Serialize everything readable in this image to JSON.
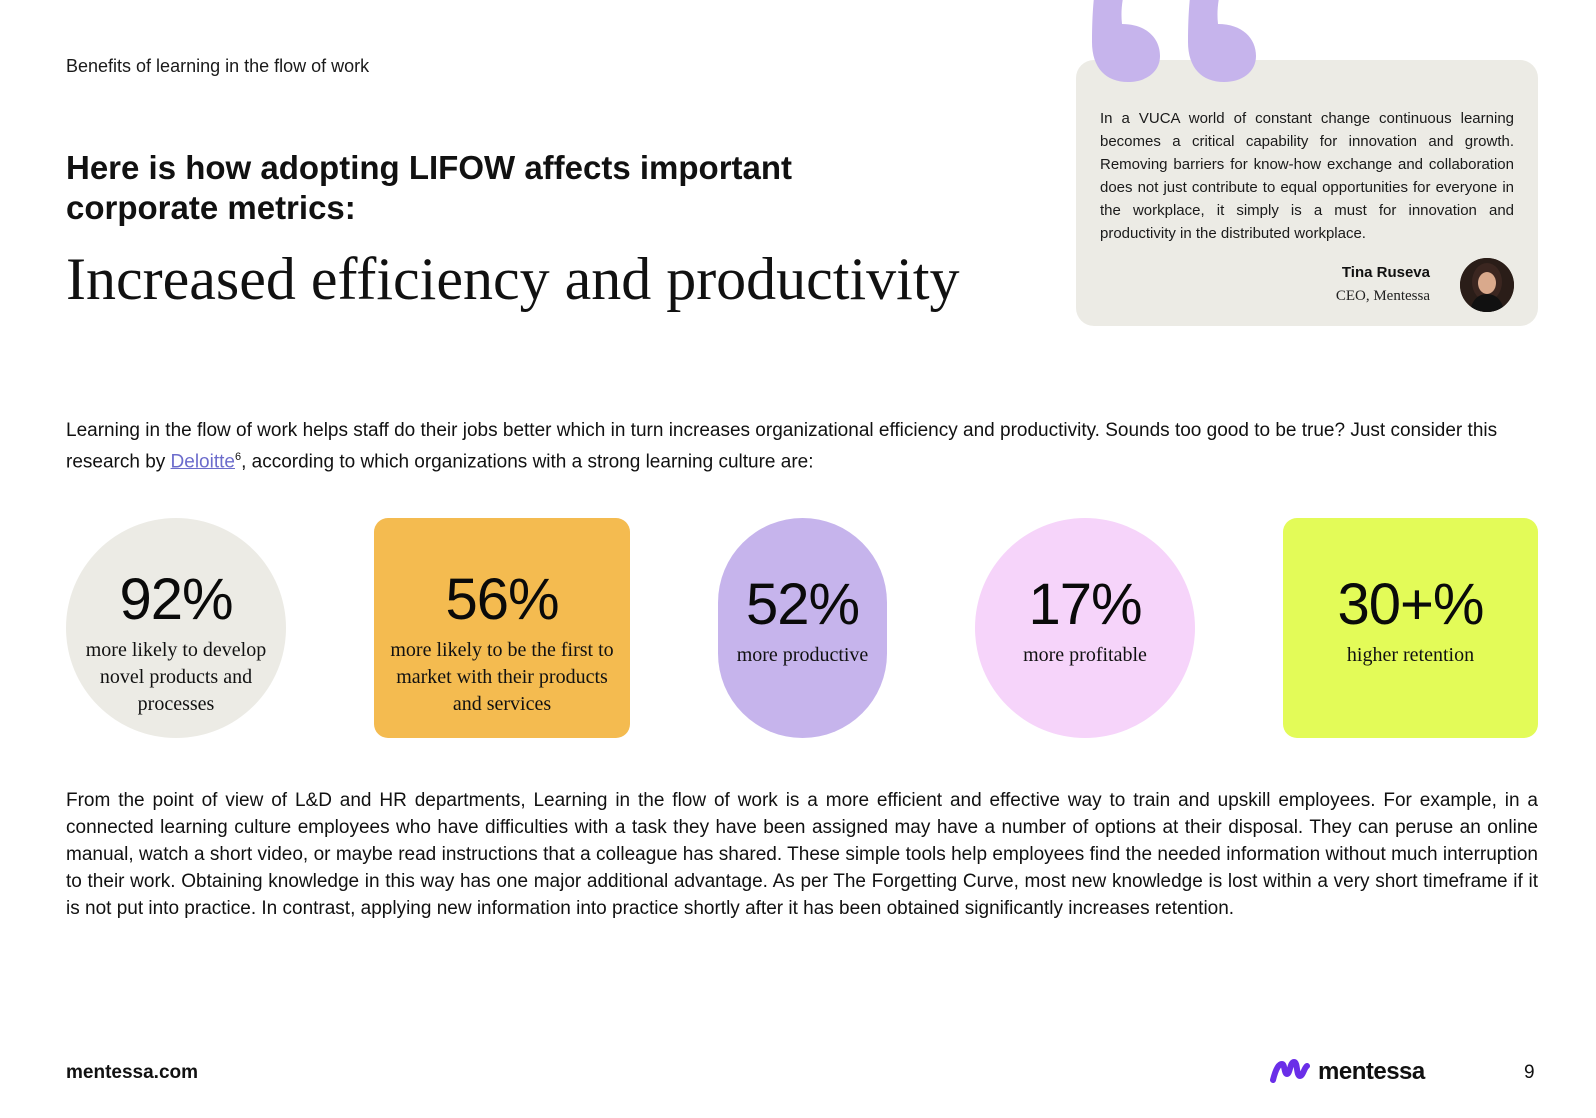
{
  "header": {
    "section_label": "Benefits of learning in the flow of work",
    "headline": "Here is how adopting LIFOW affects important corporate metrics:",
    "title": "Increased efficiency and productivity"
  },
  "quote": {
    "text": "In a VUCA world of constant change continuous learning becomes a critical capability for innovation and growth. Removing barriers for know-how exchange and collaboration does not just contribute to equal opportunities for everyone in the workplace, it simply is a must for innovation and productivity in the distributed workplace.",
    "author_name": "Tina Ruseva",
    "author_role": "CEO, Mentessa",
    "mark_color": "#c6b4ec"
  },
  "intro": {
    "before_link": "Learning in the flow of work helps staff do their jobs better which in turn increases organizational efficiency and productivity. Sounds too good to be true? Just consider this research by ",
    "link_text": "Deloitte",
    "footnote": "6",
    "after_link": ", according to which organizations with a strong learning culture are:"
  },
  "stats": [
    {
      "value": "92%",
      "desc": "more likely to develop novel products and processes",
      "color": "#ecebe5"
    },
    {
      "value": "56%",
      "desc": "more likely to be the first to market with their products and services",
      "color": "#f4bb50"
    },
    {
      "value": "52%",
      "desc": "more productive",
      "color": "#c6b4ec"
    },
    {
      "value": "17%",
      "desc": "more profitable",
      "color": "#f6d4fa"
    },
    {
      "value": "30+%",
      "desc": "higher retention",
      "color": "#e3fb58"
    }
  ],
  "body_text": "From the point of view of L&D and HR departments, Learning in the flow of work is a more efficient and effective way to train and upskill employees. For example, in a connected learning culture employees who have difficulties with a task they have been assigned may have a number of options at their disposal. They can peruse an online manual, watch a short video, or maybe read instructions that a colleague has shared. These simple tools help employees find the needed information without much interruption to their work. Obtaining knowledge in this way has one major additional advantage. As per The Forgetting Curve, most new knowledge is lost within a very short timeframe if it is not put into practice. In contrast, applying new information into practice shortly after it has been obtained significantly increases retention.",
  "footer": {
    "url": "mentessa.com",
    "logo_text": "mentessa",
    "logo_color": "#6a2ee8",
    "page_number": "9"
  }
}
